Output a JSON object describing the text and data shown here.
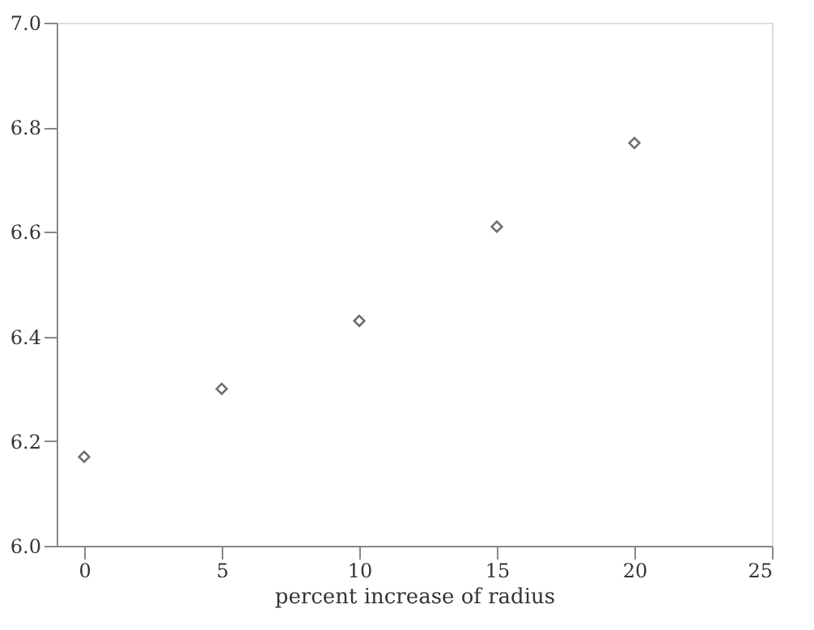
{
  "chart_data": {
    "type": "scatter",
    "xlabel": "percent increase of radius",
    "x": [
      0,
      5,
      10,
      15,
      20
    ],
    "series": [
      {
        "color": "#333333",
        "values": [
          6.17,
          6.3,
          6.43,
          6.61,
          6.77
        ]
      }
    ],
    "marker": "diamond",
    "grid": false,
    "xlim": [
      -1,
      25
    ],
    "xticks": [
      0,
      5,
      10,
      15,
      20,
      25
    ],
    "ylim": [
      6.0,
      7.0
    ],
    "yticks": [
      {
        "value": 6.0,
        "label": "6.0"
      },
      {
        "value": 6.2,
        "label": "6.2"
      },
      {
        "value": 6.4,
        "label": "6.4"
      },
      {
        "value": 6.6,
        "label": "6.6"
      },
      {
        "value": 6.8,
        "label": "6.8"
      },
      {
        "value": 7.0,
        "label": "7.0"
      }
    ]
  }
}
